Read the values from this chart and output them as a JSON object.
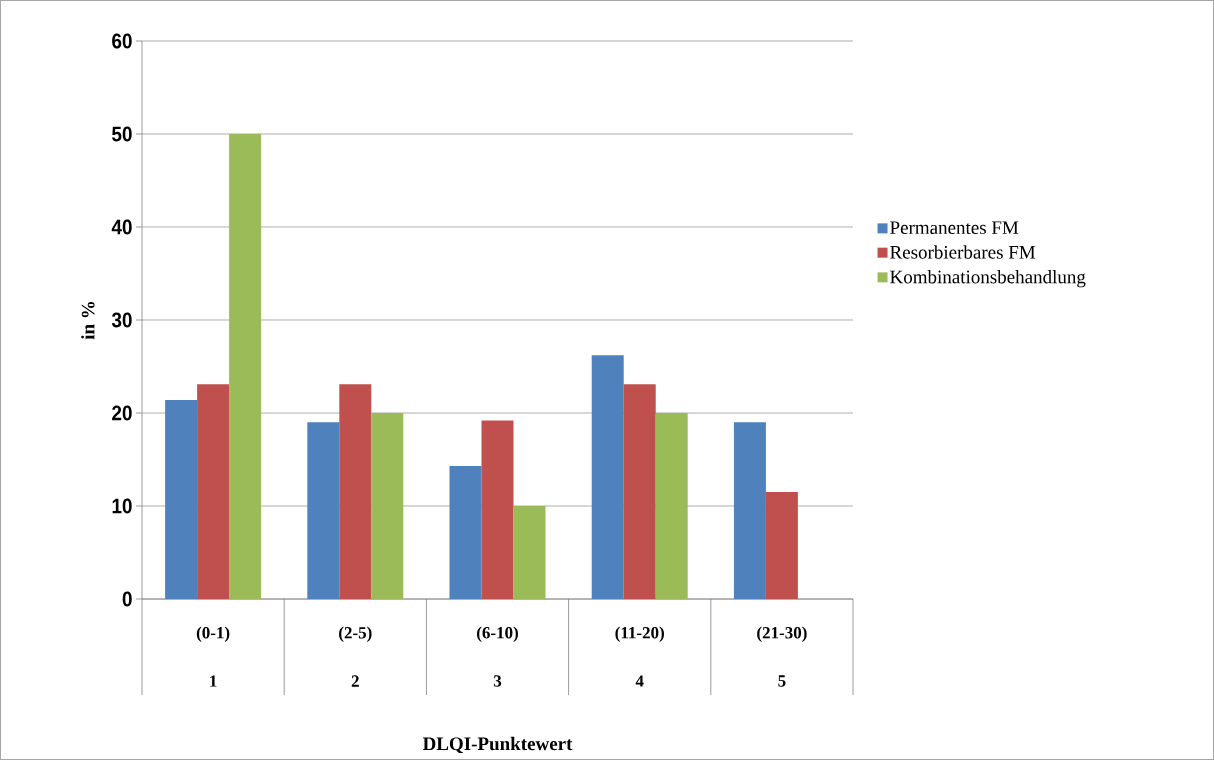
{
  "chart_data": {
    "type": "bar",
    "xlabel": "DLQI-Punktewert",
    "ylabel": "in %",
    "categories": [
      "(0-1)",
      "(2-5)",
      "(6-10)",
      "(11-20)",
      "(21-30)"
    ],
    "annotations": [
      "1",
      "2",
      "3",
      "4",
      "5"
    ],
    "series": [
      {
        "name": "Permanentes FM",
        "color": "#4f81bd",
        "values": [
          21.4,
          19,
          14.3,
          26.2,
          19
        ]
      },
      {
        "name": "Resorbierbares FM",
        "color": "#c0504d",
        "values": [
          23.1,
          23.1,
          19.2,
          23.1,
          11.5
        ]
      },
      {
        "name": "Kombinationsbehandlung",
        "color": "#9bbb59",
        "values": [
          50,
          20,
          10,
          20,
          null
        ]
      }
    ],
    "ylim": [
      0,
      60
    ],
    "yticks": [
      0,
      10,
      20,
      30,
      40,
      50,
      60
    ],
    "grid": "y",
    "legend": "right"
  }
}
